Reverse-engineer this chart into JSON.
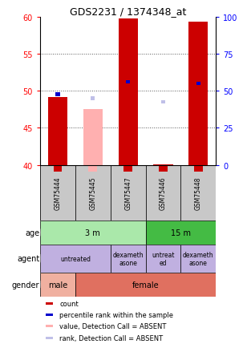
{
  "title": "GDS2231 / 1374348_at",
  "samples": [
    "GSM75444",
    "GSM75445",
    "GSM75447",
    "GSM75446",
    "GSM75448"
  ],
  "ylim": [
    40,
    60
  ],
  "y_left_ticks": [
    40,
    45,
    50,
    55,
    60
  ],
  "y_right_ticks": [
    0,
    25,
    50,
    75,
    100
  ],
  "count_values": [
    49.2,
    47.5,
    59.8,
    40.1,
    59.3
  ],
  "count_is_absent": [
    false,
    true,
    false,
    false,
    false
  ],
  "percentile_values": [
    49.5,
    49.0,
    51.2,
    48.5,
    51.0
  ],
  "percentile_is_absent": [
    false,
    true,
    false,
    true,
    false
  ],
  "count_color": "#cc0000",
  "count_absent_color": "#ffb0b0",
  "pct_color": "#0000cc",
  "pct_absent_color": "#c0c0e8",
  "age_groups": [
    {
      "label": "3 m",
      "cols": [
        0,
        1,
        2
      ],
      "color": "#aae8aa"
    },
    {
      "label": "15 m",
      "cols": [
        3,
        4
      ],
      "color": "#44bb44"
    }
  ],
  "agent_groups": [
    {
      "label": "untreated",
      "cols": [
        0,
        1
      ],
      "color": "#c0b0e0"
    },
    {
      "label": "dexameth\nasone",
      "cols": [
        2
      ],
      "color": "#c0b0e0"
    },
    {
      "label": "untreat\ned",
      "cols": [
        3
      ],
      "color": "#c0b0e0"
    },
    {
      "label": "dexameth\nasone",
      "cols": [
        4
      ],
      "color": "#c0b0e0"
    }
  ],
  "gender_groups": [
    {
      "label": "male",
      "cols": [
        0
      ],
      "color": "#f0b0a0"
    },
    {
      "label": "female",
      "cols": [
        1,
        2,
        3,
        4
      ],
      "color": "#e07060"
    }
  ],
  "row_labels": [
    "age",
    "agent",
    "gender"
  ],
  "legend_items": [
    {
      "color": "#cc0000",
      "label": "count"
    },
    {
      "color": "#0000cc",
      "label": "percentile rank within the sample"
    },
    {
      "color": "#ffb0b0",
      "label": "value, Detection Call = ABSENT"
    },
    {
      "color": "#c0c0e8",
      "label": "rank, Detection Call = ABSENT"
    }
  ],
  "sample_box_color": "#c8c8c8",
  "plot_bg_color": "#ffffff",
  "grid_color": "#555555",
  "bar_width": 0.55
}
